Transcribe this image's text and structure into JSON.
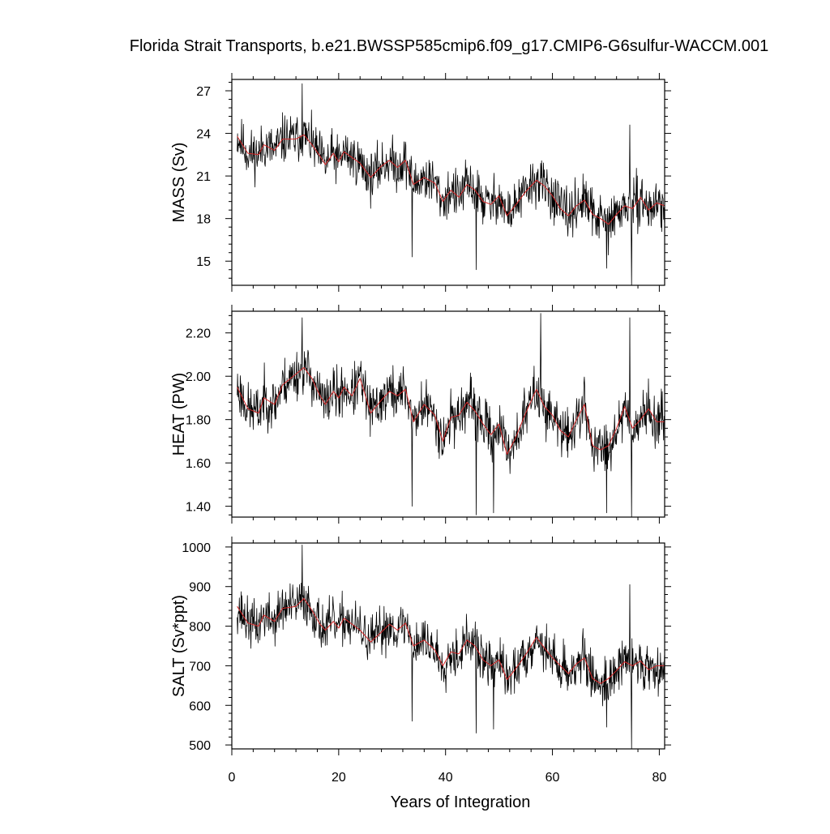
{
  "title": "Florida Strait Transports, b.e21.BWSSP585cmip6.f09_g17.CMIP6-G6sulfur-WACCM.001",
  "colors": {
    "raw": "#000000",
    "smoothed": "#d62728",
    "axis": "#000000",
    "background": "#ffffff"
  },
  "chart_data": [
    {
      "type": "line",
      "ylabel": "MASS (Sv)",
      "xlabel": "",
      "xlim": [
        0,
        81
      ],
      "ylim": [
        13.3,
        27.8
      ],
      "yticks": [
        15,
        18,
        21,
        24,
        27
      ],
      "ytick_labels": [
        "15",
        "18",
        "21",
        "24",
        "27"
      ],
      "xticks": [
        0,
        20,
        40,
        60,
        80
      ],
      "show_xtick_labels": false,
      "grid": false,
      "series": [
        {
          "style": "monthly",
          "x_start": 1.0,
          "x_step": 0.0833,
          "base": [
            23.6,
            22.7,
            22.7,
            23.2,
            23.6,
            23.8,
            22.5,
            21.9,
            22.3,
            22.7,
            22.0,
            21.4,
            20.9,
            21.0,
            20.6,
            20.2,
            19.8,
            20.2,
            19.5,
            19.1,
            18.9,
            19.0,
            18.6,
            18.5,
            18.9
          ],
          "amp": 1.3,
          "spikes": [
            [
              13.2,
              27.5
            ],
            [
              33.7,
              15.3
            ],
            [
              45.7,
              14.4
            ],
            [
              70.1,
              14.5
            ],
            [
              74.8,
              13.3
            ],
            [
              74.5,
              24.6
            ]
          ],
          "seed": 11
        },
        {
          "style": "smoothed",
          "x": [
            1,
            3,
            5,
            6,
            8,
            9.5,
            12,
            13.5,
            15,
            16.5,
            17.5,
            19,
            20,
            21,
            22.5,
            24,
            26,
            28,
            29.5,
            31,
            32.5,
            34,
            36,
            38,
            39.5,
            41,
            42.5,
            44,
            45.5,
            47,
            48.5,
            50,
            51.5,
            53,
            55,
            57,
            58.5,
            60,
            61.5,
            63,
            64.5,
            66,
            67.5,
            69,
            70.5,
            72,
            73.5,
            75,
            76.5,
            78,
            79.5,
            81
          ],
          "y": [
            23.8,
            22.6,
            22.5,
            23.2,
            22.8,
            23.6,
            23.6,
            23.9,
            23.2,
            22.4,
            21.8,
            22.6,
            22.0,
            22.7,
            22.3,
            21.9,
            20.9,
            21.7,
            22.1,
            21.6,
            22.1,
            20.4,
            20.9,
            20.5,
            19.2,
            20.0,
            19.5,
            20.4,
            20.0,
            19.2,
            19.0,
            19.6,
            18.2,
            18.9,
            19.9,
            20.7,
            20.3,
            19.6,
            18.7,
            18.2,
            18.9,
            19.3,
            18.3,
            18.0,
            17.6,
            18.3,
            18.9,
            18.7,
            19.5,
            18.6,
            19.1,
            18.9
          ]
        }
      ]
    },
    {
      "type": "line",
      "ylabel": "HEAT (PW)",
      "xlabel": "",
      "xlim": [
        0,
        81
      ],
      "ylim": [
        1.35,
        2.3
      ],
      "yticks": [
        1.4,
        1.6,
        1.8,
        2.0,
        2.2
      ],
      "ytick_labels": [
        "1.40",
        "1.60",
        "1.80",
        "2.00",
        "2.20"
      ],
      "xticks": [
        0,
        20,
        40,
        60,
        80
      ],
      "show_xtick_labels": false,
      "grid": false,
      "series": [
        {
          "style": "monthly",
          "x_start": 1.0,
          "x_step": 0.0833,
          "base": [
            1.93,
            1.87,
            1.86,
            1.92,
            1.98,
            2.01,
            1.93,
            1.88,
            1.91,
            1.95,
            1.86,
            1.82,
            1.87,
            1.91,
            1.83,
            1.8,
            1.75,
            1.84,
            1.9,
            1.78,
            1.7,
            1.75,
            1.68,
            1.7,
            1.78
          ],
          "amp": 0.09,
          "spikes": [
            [
              13.2,
              2.27
            ],
            [
              33.7,
              1.4
            ],
            [
              45.7,
              1.36
            ],
            [
              49.0,
              1.37
            ],
            [
              57.8,
              2.29
            ],
            [
              74.5,
              2.27
            ],
            [
              74.8,
              1.35
            ],
            [
              70.1,
              1.37
            ]
          ],
          "seed": 23
        },
        {
          "style": "smoothed",
          "x": [
            1,
            3,
            5,
            6,
            8,
            9.5,
            12,
            13.5,
            15,
            16.5,
            17.5,
            19,
            20,
            21,
            22.5,
            24,
            26,
            28,
            29.5,
            31,
            32.5,
            34,
            36,
            38,
            39.5,
            41,
            42.5,
            44,
            45.5,
            47,
            48.5,
            50,
            51.5,
            53,
            55,
            57,
            58.5,
            60,
            61.5,
            63,
            64.5,
            66,
            67.5,
            69,
            70.5,
            72,
            73.5,
            75,
            76.5,
            78,
            79.5,
            81
          ],
          "y": [
            1.95,
            1.85,
            1.83,
            1.9,
            1.87,
            1.96,
            2.01,
            2.04,
            1.99,
            1.91,
            1.87,
            1.93,
            1.9,
            1.95,
            1.91,
            1.99,
            1.83,
            1.89,
            1.93,
            1.91,
            1.94,
            1.79,
            1.87,
            1.82,
            1.7,
            1.81,
            1.82,
            1.88,
            1.84,
            1.78,
            1.73,
            1.78,
            1.64,
            1.71,
            1.83,
            1.94,
            1.86,
            1.82,
            1.75,
            1.72,
            1.8,
            1.87,
            1.68,
            1.66,
            1.68,
            1.76,
            1.86,
            1.76,
            1.8,
            1.85,
            1.79,
            1.79
          ]
        }
      ]
    },
    {
      "type": "line",
      "ylabel": "SALT (Sv*ppt)",
      "xlabel": "Years of Integration",
      "xlim": [
        0,
        81
      ],
      "ylim": [
        490,
        1010
      ],
      "yticks": [
        500,
        600,
        700,
        800,
        900,
        1000
      ],
      "ytick_labels": [
        "500",
        "600",
        "700",
        "800",
        "900",
        "1000"
      ],
      "xticks": [
        0,
        20,
        40,
        60,
        80
      ],
      "xtick_labels": [
        "0",
        "20",
        "40",
        "60",
        "80"
      ],
      "show_xtick_labels": true,
      "grid": false,
      "series": [
        {
          "style": "monthly",
          "x_start": 1.0,
          "x_step": 0.0833,
          "base": [
            840,
            810,
            810,
            828,
            842,
            850,
            802,
            782,
            796,
            810,
            786,
            764,
            748,
            752,
            735,
            722,
            707,
            720,
            697,
            683,
            676,
            680,
            665,
            662,
            676
          ],
          "amp": 46,
          "spikes": [
            [
              13.2,
              1005
            ],
            [
              33.7,
              560
            ],
            [
              45.7,
              530
            ],
            [
              49.0,
              540
            ],
            [
              70.1,
              545
            ],
            [
              74.8,
              490
            ],
            [
              74.5,
              905
            ]
          ],
          "seed": 37
        },
        {
          "style": "smoothed",
          "x": [
            1,
            3,
            5,
            6,
            8,
            9.5,
            12,
            13.5,
            15,
            16.5,
            17.5,
            19,
            20,
            21,
            22.5,
            24,
            26,
            28,
            29.5,
            31,
            32.5,
            34,
            36,
            38,
            39.5,
            41,
            42.5,
            44,
            45.5,
            47,
            48.5,
            50,
            51.5,
            53,
            55,
            57,
            58.5,
            60,
            61.5,
            63,
            64.5,
            66,
            67.5,
            69,
            70.5,
            72,
            73.5,
            75,
            76.5,
            78,
            79.5,
            81
          ],
          "y": [
            850,
            808,
            800,
            828,
            812,
            845,
            850,
            870,
            840,
            805,
            790,
            812,
            795,
            820,
            805,
            790,
            760,
            785,
            805,
            790,
            808,
            750,
            765,
            740,
            700,
            735,
            730,
            765,
            750,
            715,
            700,
            715,
            665,
            690,
            728,
            772,
            745,
            720,
            700,
            680,
            705,
            720,
            668,
            655,
            668,
            688,
            710,
            700,
            712,
            690,
            700,
            700
          ]
        }
      ]
    }
  ]
}
